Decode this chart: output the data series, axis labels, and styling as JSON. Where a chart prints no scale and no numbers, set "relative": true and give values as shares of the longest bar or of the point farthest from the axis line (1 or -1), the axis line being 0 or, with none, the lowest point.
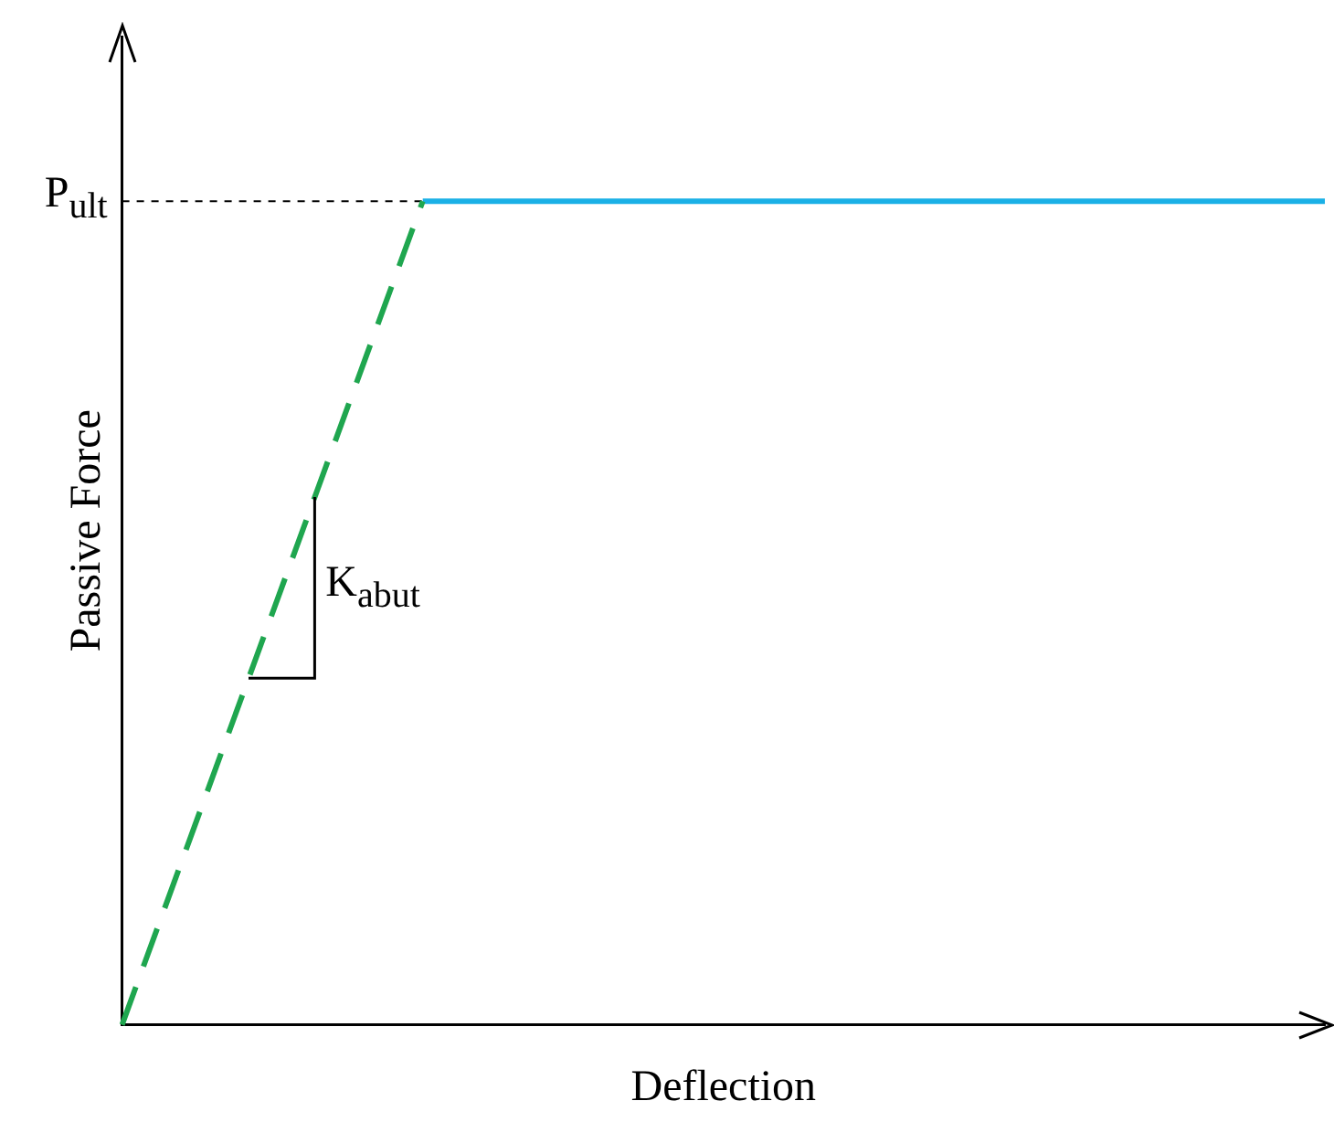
{
  "chart_data": {
    "type": "line",
    "xlabel": "Deflection",
    "ylabel": "Passive Force",
    "relative": true,
    "grid": false,
    "legend": false,
    "marker": "none",
    "categories": [
      null,
      null,
      null,
      null,
      null
    ],
    "series": [
      {
        "color": "#1fa64f",
        "line_style": "dashed",
        "values": [
          0,
          1,
          null,
          null,
          null
        ]
      },
      {
        "color": "#1ab0e6",
        "line_style": "solid",
        "values": [
          null,
          1,
          1,
          1,
          1
        ]
      }
    ],
    "ref_lines": [
      {
        "axis": "y",
        "value": 1,
        "label": "P$_{ult}$",
        "color": "#000000",
        "line_style": "dashed"
      }
    ],
    "annotations": [
      "K$_{abut}$"
    ]
  }
}
